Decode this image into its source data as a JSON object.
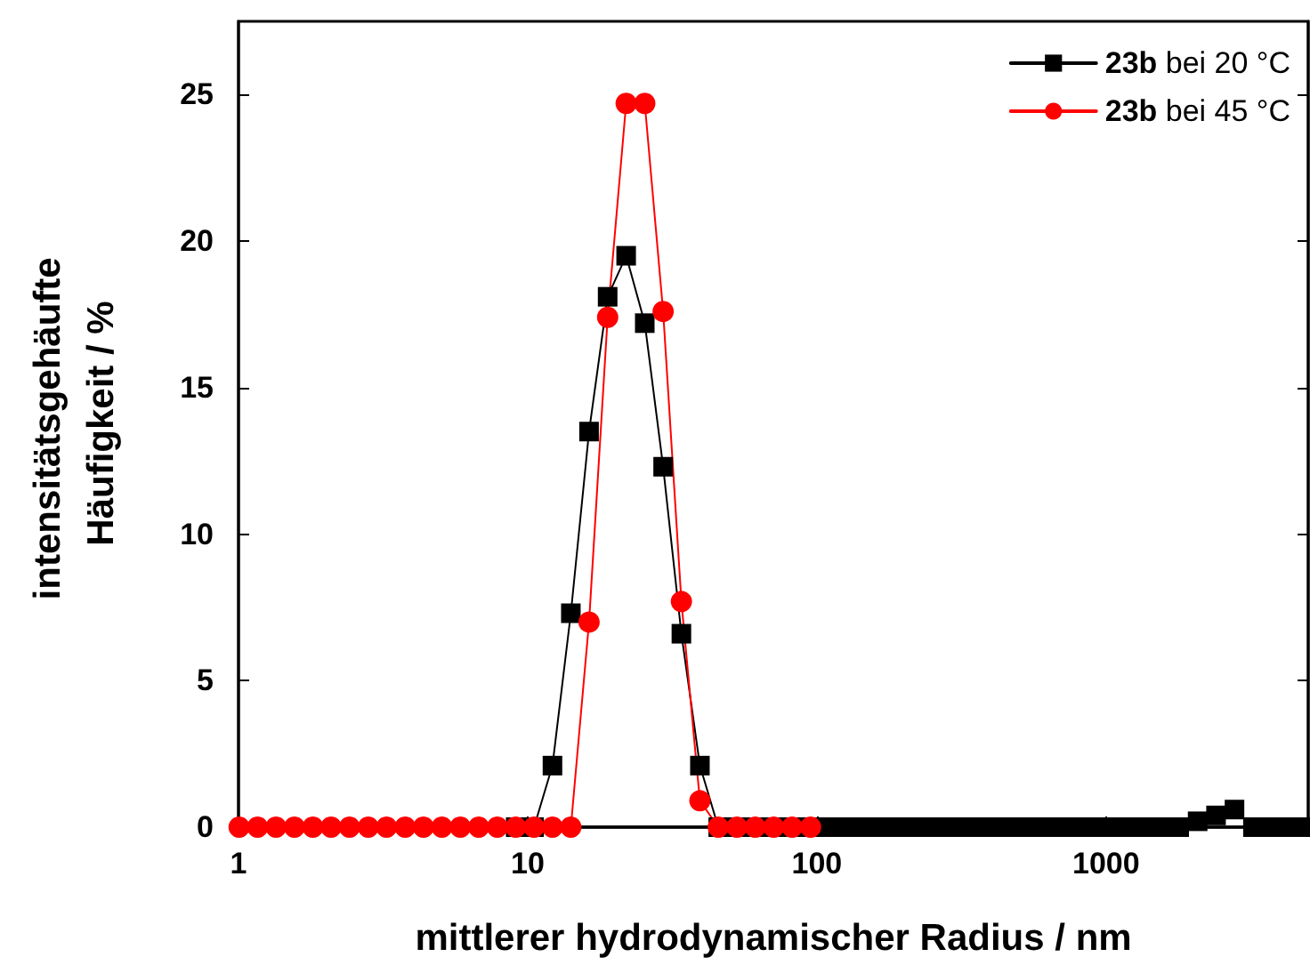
{
  "chart_data": {
    "type": "line",
    "xlabel": "mittlerer hydrodynamischer Radius / nm",
    "ylabel": "intensitätsgehäufte Häufigkeit / %",
    "log": "x",
    "xlim": [
      1,
      5000
    ],
    "xticks": [
      1,
      10,
      100,
      1000
    ],
    "ylim": [
      0,
      27.5
    ],
    "yticks": [
      0,
      5,
      10,
      15,
      20,
      25
    ],
    "grid": false,
    "legend": "top right",
    "line_style": "solid",
    "series": [
      {
        "name": "23b bei 20 °C",
        "color": "#000000",
        "marker": "square",
        "x": [
          9.09,
          10.52,
          12.18,
          14.1,
          16.3,
          18.9,
          21.9,
          25.4,
          29.4,
          34.0,
          39.4,
          45.6,
          52.9,
          61.2,
          70.9,
          82.1,
          95.1,
          110,
          127.5,
          147.7,
          171,
          198,
          229,
          266,
          308,
          356,
          412,
          478,
          553,
          641,
          742,
          859,
          995,
          1153,
          1335,
          1546,
          1790,
          2073,
          2400,
          2780,
          3220,
          3728,
          4318,
          5000
        ],
        "values": [
          0,
          0,
          2.1,
          7.3,
          13.5,
          18.1,
          19.5,
          17.2,
          12.3,
          6.6,
          2.1,
          0,
          0,
          0,
          0,
          0,
          0,
          0,
          0,
          0,
          0,
          0,
          0,
          0,
          0,
          0,
          0,
          0,
          0,
          0,
          0,
          0,
          0,
          0,
          0,
          0,
          0,
          0.2,
          0.4,
          0.6,
          0,
          0,
          0,
          0
        ]
      },
      {
        "name": "23b bei 45 °C",
        "color": "#ff0000",
        "marker": "circle",
        "x": [
          1.005,
          1.164,
          1.348,
          1.561,
          1.808,
          2.09,
          2.42,
          2.81,
          3.25,
          3.77,
          4.36,
          5.05,
          5.85,
          6.77,
          7.85,
          9.09,
          10.52,
          12.18,
          14.1,
          16.3,
          18.9,
          21.9,
          25.4,
          29.4,
          34.0,
          39.4,
          45.6,
          52.9,
          61.2,
          70.9,
          82.1,
          95.1
        ],
        "values": [
          0,
          0,
          0,
          0,
          0,
          0,
          0,
          0,
          0,
          0,
          0,
          0,
          0,
          0,
          0,
          0,
          0,
          0,
          0,
          7.0,
          17.4,
          24.7,
          24.7,
          17.6,
          7.7,
          0.9,
          0,
          0,
          0,
          0,
          0,
          0
        ]
      }
    ]
  }
}
